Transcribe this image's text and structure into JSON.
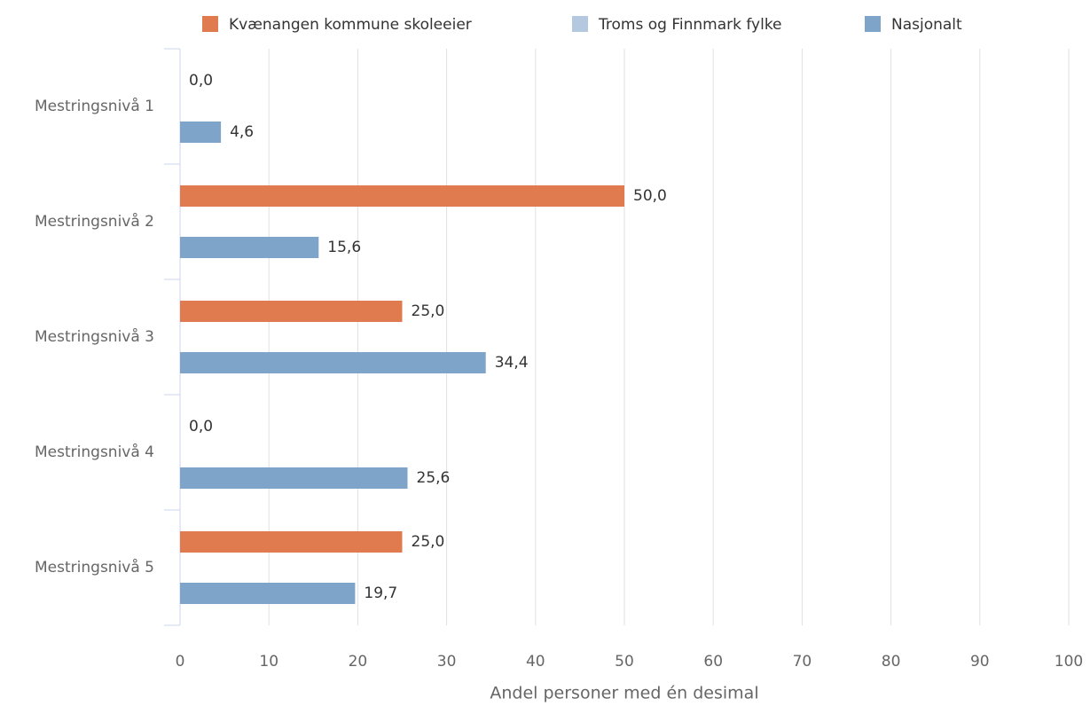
{
  "chart_data": {
    "type": "bar",
    "orientation": "horizontal",
    "x_label": "Andel personer med én desimal",
    "categories": [
      "Mestringsnivå 1",
      "Mestringsnivå 2",
      "Mestringsnivå 3",
      "Mestringsnivå 4",
      "Mestringsnivå 5"
    ],
    "series": [
      {
        "name": "Kvænangen kommune skoleeier",
        "color": "#e07b4f",
        "values": [
          0,
          50,
          25,
          0,
          25
        ],
        "value_labels": [
          "0,0",
          "50,0",
          "25,0",
          "0,0",
          "25,0"
        ]
      },
      {
        "name": "Troms og Finnmark fylke",
        "color": "#b4c9e0",
        "values": [
          null,
          null,
          null,
          null,
          null
        ]
      },
      {
        "name": "Nasjonalt",
        "color": "#7ea4c9",
        "values": [
          4.6,
          15.6,
          34.4,
          25.6,
          19.7
        ],
        "value_labels": [
          "4,6",
          "15,6",
          "34,4",
          "25,6",
          "19,7"
        ]
      }
    ],
    "xlim": [
      0,
      100
    ],
    "xticks": [
      0,
      10,
      20,
      30,
      40,
      50,
      60,
      70,
      80,
      90,
      100
    ],
    "grid": true,
    "legend": "top"
  }
}
